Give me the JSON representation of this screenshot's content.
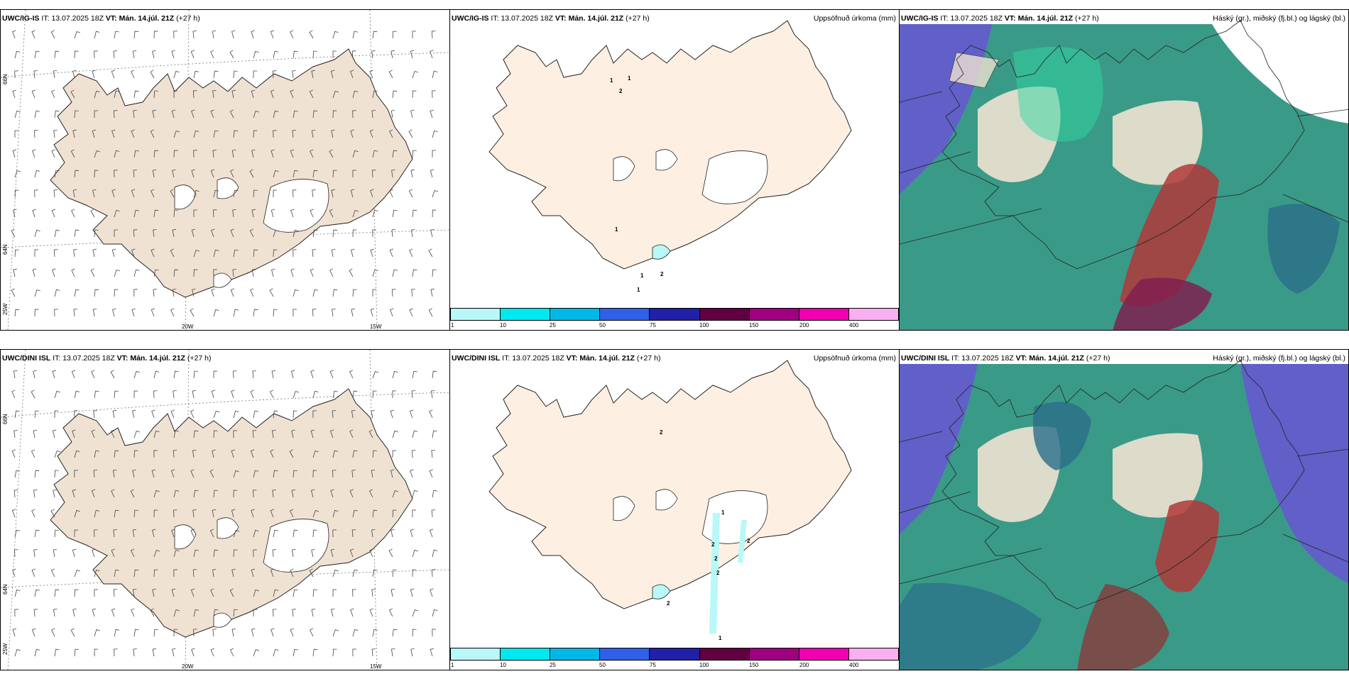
{
  "panels": {
    "top_left": {
      "model": "UWC/IG-IS",
      "it_label": "IT:",
      "it_value": "13.07.2025 18Z",
      "vt_label": "VT:",
      "vt_value": "Mán. 14.júl. 21Z",
      "lead": "(+27 h)"
    },
    "top_mid": {
      "model": "UWC/IG-IS",
      "it_label": "IT:",
      "it_value": "13.07.2025 18Z",
      "vt_label": "VT:",
      "vt_value": "Mán. 14.júl. 21Z",
      "lead": "(+27 h)",
      "right_title": "Uppsöfnuð úrkoma (mm)"
    },
    "top_right": {
      "model": "UWC/IG-IS",
      "it_label": "IT:",
      "it_value": "13.07.2025 18Z",
      "vt_label": "VT:",
      "vt_value": "Mán. 14.júl. 21Z",
      "lead": "(+27 h)",
      "right_title": "Háský (gr.), miðský (fj.bl.) og lágský (bl.)"
    },
    "bottom_left": {
      "model": "UWC/DINI ISL",
      "it_label": "IT:",
      "it_value": "13.07.2025 18Z",
      "vt_label": "VT:",
      "vt_value": "Mán. 14.júl. 21Z",
      "lead": "(+27 h)"
    },
    "bottom_mid": {
      "model": "UWC/DINI ISL",
      "it_label": "IT:",
      "it_value": "13.07.2025 18Z",
      "vt_label": "VT:",
      "vt_value": "Mán. 14.júl. 21Z",
      "lead": "(+27 h)",
      "right_title": "Uppsöfnuð úrkoma (mm)"
    },
    "bottom_right": {
      "model": "UWC/DINI ISL",
      "it_label": "IT:",
      "it_value": "13.07.2025 18Z",
      "vt_label": "VT:",
      "vt_value": "Mán. 14.júl. 21Z",
      "lead": "(+27 h)",
      "right_title": "Háský (gr.), miðský (fj.bl.) og lágský (bl.)"
    }
  },
  "grid_labels": {
    "lat66": "66N",
    "lat64": "64N",
    "lon25": "25W",
    "lon20": "20W",
    "lon15": "15W"
  },
  "colorbar": {
    "ticks": [
      "1",
      "10",
      "25",
      "50",
      "75",
      "100",
      "150",
      "200",
      "400"
    ],
    "colors": [
      "#b8f8f8",
      "#00e8f0",
      "#00b8e8",
      "#3060e8",
      "#2020a8",
      "#600040",
      "#a00080",
      "#f000b0",
      "#f8b0f0"
    ]
  },
  "precip_values_top": [
    "1",
    "2",
    "1",
    "1",
    "1",
    "2",
    "1"
  ],
  "precip_values_bottom": [
    "2",
    "1",
    "2",
    "2",
    "2",
    "2",
    "1",
    "2"
  ],
  "colors": {
    "land_wind": "#f0e2d2",
    "land_precip": "#fdf0e2",
    "cloud_low": "#6060c8",
    "cloud_mid": "#3a9a88",
    "cloud_high": "#b03838",
    "cloud_teal_light": "#30d8a0"
  }
}
